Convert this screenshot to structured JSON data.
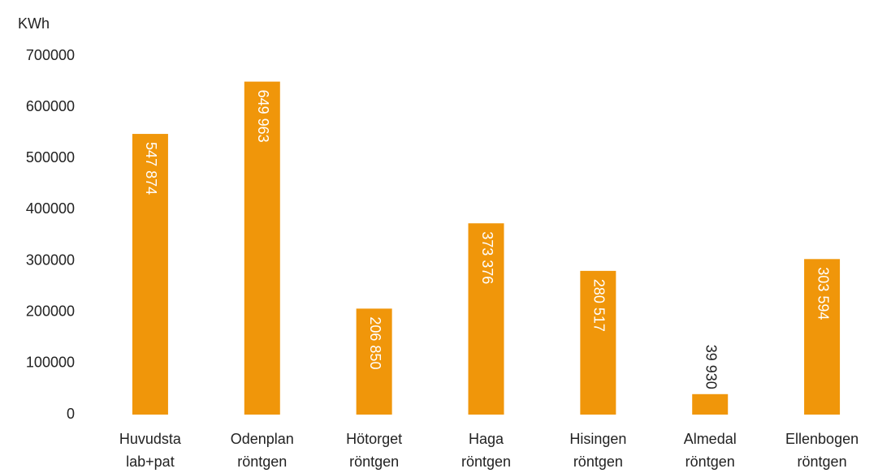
{
  "chart_data": {
    "type": "bar",
    "y_label": "KWh",
    "categories": [
      "Huvudsta lab+pat",
      "Odenplan röntgen",
      "Hötorget röntgen",
      "Haga röntgen",
      "Hisingen röntgen",
      "Almedal röntgen",
      "Ellenbogen röntgen"
    ],
    "values": [
      547874,
      649963,
      206850,
      373376,
      280517,
      39930,
      303594
    ],
    "value_labels": [
      "547 874",
      "649 963",
      "206 850",
      "373 376",
      "280 517",
      "39 930",
      "303 594"
    ],
    "color": "#f0960a",
    "ylim": [
      0,
      700000
    ],
    "yticks": [
      0,
      100000,
      200000,
      300000,
      400000,
      500000,
      600000,
      700000
    ],
    "grid": false
  }
}
